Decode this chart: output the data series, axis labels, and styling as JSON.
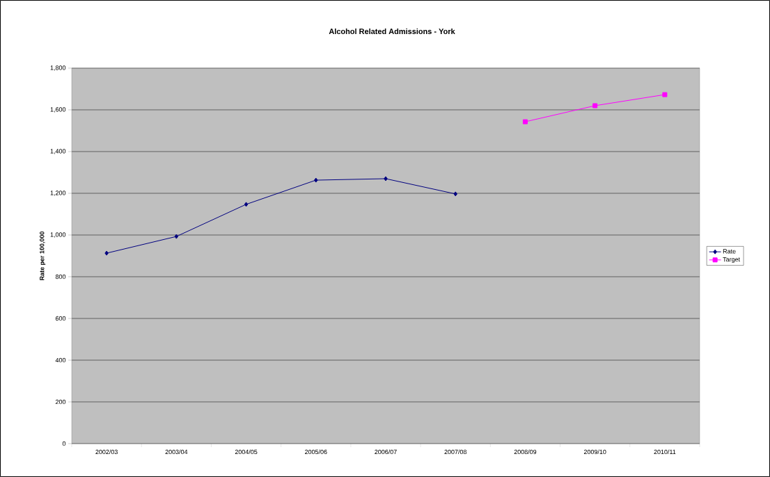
{
  "chart_data": {
    "type": "line",
    "title": "Alcohol Related Admissions - York",
    "ylabel": "Rate per 100,000",
    "categories": [
      "2002/03",
      "2003/04",
      "2004/05",
      "2005/06",
      "2006/07",
      "2007/08",
      "2008/09",
      "2009/10",
      "2010/11"
    ],
    "series": [
      {
        "name": "Rate",
        "color": "#000080",
        "marker": "diamond",
        "values": [
          913,
          993,
          1147,
          1263,
          1270,
          1197,
          null,
          null,
          null
        ]
      },
      {
        "name": "Target",
        "color": "#ff00ff",
        "marker": "square",
        "values": [
          null,
          null,
          null,
          null,
          null,
          null,
          1543,
          1620,
          1673
        ]
      }
    ],
    "ylim": [
      0,
      1800
    ],
    "yticks": [
      0,
      200,
      400,
      600,
      800,
      {
        "value": 1000,
        "label": "1,000"
      },
      {
        "value": 1200,
        "label": "1,200"
      },
      {
        "value": 1400,
        "label": "1,400"
      },
      {
        "value": 1600,
        "label": "1,600"
      },
      {
        "value": 1800,
        "label": "1,800"
      }
    ],
    "grid": "y",
    "legend": "right",
    "line_style": "solid"
  }
}
